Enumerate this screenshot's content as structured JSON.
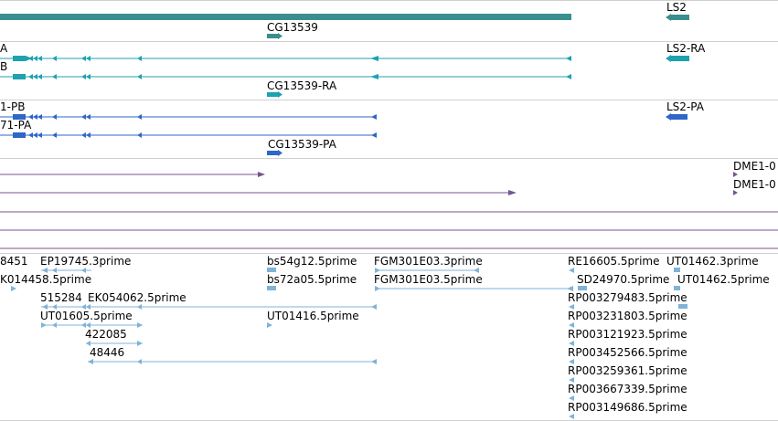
{
  "colors": {
    "gene": "#3b8e8e",
    "transcript": "#1fa2b0",
    "cds": "#2f66c8",
    "alignment": "#75558f",
    "est": "#7fb3d8",
    "divider": "#d0d0d0"
  },
  "genes": {
    "ls2": "LS2",
    "cg13539": "CG13539"
  },
  "transcripts": {
    "row1_left": "A",
    "row2_left": "B",
    "cg13539_ra": "CG13539-RA",
    "ls2_ra": "LS2-RA"
  },
  "cds": {
    "row1_left": "1-PB",
    "row2_left": "71-PA",
    "cg13539_pa": "CG13539-PA",
    "ls2_pa": "LS2-PA"
  },
  "alignments": {
    "dme1_a": "DME1-0",
    "dme1_b": "DME1-0"
  },
  "ests": {
    "e8451": "8451",
    "ep19745": "EP19745.3prime",
    "bs54g12": "bs54g12.5prime",
    "fgm301e03_3": "FGM301E03.3prime",
    "re16605": "RE16605.5prime",
    "ut01462_3": "UT01462.3prime",
    "k014458": "K014458.5prime",
    "bs72a05": "bs72a05.5prime",
    "fgm301e03_5": "FGM301E03.5prime",
    "sd24970": "SD24970.5prime",
    "ut01462_5": "UT01462.5prime",
    "e515284": "515284",
    "ek054062": "EK054062.5prime",
    "rp003279483": "RP003279483.5prime",
    "ut01605": "UT01605.5prime",
    "ut01416": "UT01416.5prime",
    "rp003231803": "RP003231803.5prime",
    "e422085": "422085",
    "rp003121923": "RP003121923.5prime",
    "e48446": "48446",
    "rp003452566": "RP003452566.5prime",
    "rp003259361": "RP003259361.5prime",
    "rp003667339": "RP003667339.5prime",
    "rp003149686": "RP003149686.5prime"
  }
}
